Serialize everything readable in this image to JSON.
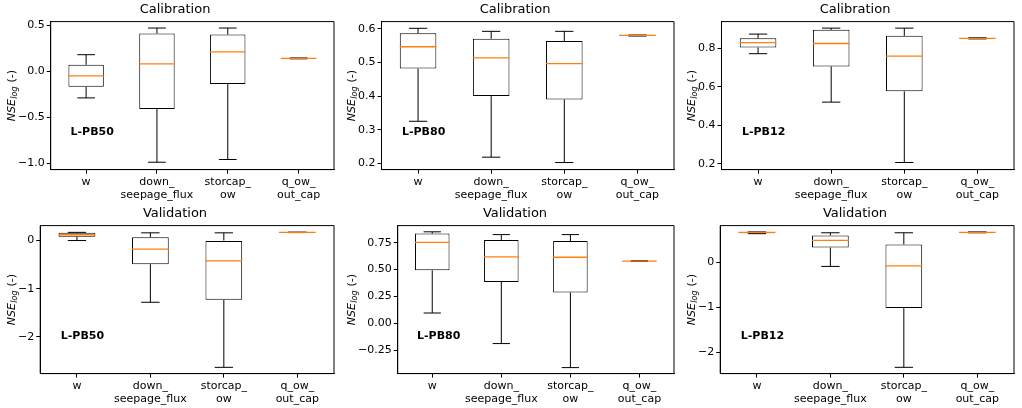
{
  "chart_data": [
    {
      "type": "box",
      "title": "Calibration",
      "ylabel": "NSE$_{log}$ (-)",
      "categories": [
        "w",
        "down_\nseepage_flux",
        "storcap_\now",
        "q_ow_\nout_cap"
      ],
      "ylim": [
        -1.07,
        0.54
      ],
      "yticks": [
        {
          "value": -1,
          "label": "−1.0"
        },
        {
          "value": -0.5,
          "label": "−0.5"
        },
        {
          "value": 0,
          "label": "0.0"
        },
        0.5
      ],
      "annotations": [
        "L-PB50"
      ],
      "boxes": [
        {
          "low": -0.29,
          "q1": -0.17,
          "median": -0.05,
          "q3": 0.07,
          "high": 0.18
        },
        {
          "low": -0.99,
          "q1": -0.41,
          "median": 0.08,
          "q3": 0.41,
          "high": 0.47
        },
        {
          "low": -0.96,
          "q1": -0.14,
          "median": 0.21,
          "q3": 0.4,
          "high": 0.47
        },
        {
          "low": 0.135,
          "q1": 0.135,
          "median": 0.14,
          "q3": 0.145,
          "high": 0.145
        }
      ]
    },
    {
      "type": "box",
      "title": "Calibration",
      "ylabel": "NSE$_{log}$ (-)",
      "categories": [
        "w",
        "down_\nseepage_flux",
        "storcap_\now",
        "q_ow_\nout_cap"
      ],
      "ylim": [
        0.181,
        0.622
      ],
      "yticks": [
        0.2,
        0.3,
        0.4,
        0.5,
        0.6
      ],
      "annotations": [
        "L-PB80"
      ],
      "boxes": [
        {
          "low": 0.325,
          "q1": 0.482,
          "median": 0.547,
          "q3": 0.587,
          "high": 0.602
        },
        {
          "low": 0.218,
          "q1": 0.4,
          "median": 0.514,
          "q3": 0.571,
          "high": 0.593
        },
        {
          "low": 0.202,
          "q1": 0.39,
          "median": 0.497,
          "q3": 0.564,
          "high": 0.593
        },
        {
          "low": 0.579,
          "q1": 0.58,
          "median": 0.581,
          "q3": 0.581,
          "high": 0.582
        }
      ]
    },
    {
      "type": "box",
      "title": "Calibration",
      "ylabel": "NSE$_{log}$ (-)",
      "categories": [
        "w",
        "down_\nseepage_flux",
        "storcap_\now",
        "q_ow_\nout_cap"
      ],
      "ylim": [
        0.17,
        0.94
      ],
      "yticks": [
        0.2,
        0.4,
        0.6,
        0.8
      ],
      "annotations": [
        "L-PB12"
      ],
      "boxes": [
        {
          "low": 0.773,
          "q1": 0.805,
          "median": 0.831,
          "q3": 0.853,
          "high": 0.875
        },
        {
          "low": 0.521,
          "q1": 0.707,
          "median": 0.826,
          "q3": 0.897,
          "high": 0.906
        },
        {
          "low": 0.207,
          "q1": 0.577,
          "median": 0.76,
          "q3": 0.866,
          "high": 0.906
        },
        {
          "low": 0.85,
          "q1": 0.852,
          "median": 0.853,
          "q3": 0.854,
          "high": 0.856
        }
      ]
    },
    {
      "type": "box",
      "title": "Validation",
      "ylabel": "NSE$_{log}$ (-)",
      "categories": [
        "w",
        "down_\nseepage_flux",
        "storcap_\now",
        "q_ow_\nout_cap"
      ],
      "ylim": [
        -2.76,
        0.31
      ],
      "yticks": [
        {
          "value": -2,
          "label": "−2"
        },
        {
          "value": -1,
          "label": "−1"
        },
        0
      ],
      "annotations": [
        "L-PB50"
      ],
      "boxes": [
        {
          "low": 0.0,
          "q1": 0.08,
          "median": 0.12,
          "q3": 0.16,
          "high": 0.17
        },
        {
          "low": -1.28,
          "q1": -0.49,
          "median": -0.18,
          "q3": 0.07,
          "high": 0.16
        },
        {
          "low": -2.63,
          "q1": -1.23,
          "median": -0.42,
          "q3": 0.0,
          "high": 0.16
        },
        {
          "low": 0.165,
          "q1": 0.168,
          "median": 0.17,
          "q3": 0.172,
          "high": 0.175
        }
      ]
    },
    {
      "type": "box",
      "title": "Validation",
      "ylabel": "NSE$_{log}$ (-)",
      "categories": [
        "w",
        "down_\nseepage_flux",
        "storcap_\now",
        "q_ow_\nout_cap"
      ],
      "ylim": [
        -0.47,
        0.91
      ],
      "yticks": [
        {
          "value": -0.25,
          "label": "−0.25"
        },
        {
          "value": 0,
          "label": "0.00"
        },
        0.25,
        {
          "value": 0.5,
          "label": "0.50"
        },
        0.75
      ],
      "annotations": [
        "L-PB80"
      ],
      "boxes": [
        {
          "low": 0.095,
          "q1": 0.493,
          "median": 0.753,
          "q3": 0.836,
          "high": 0.852
        },
        {
          "low": -0.19,
          "q1": 0.385,
          "median": 0.618,
          "q3": 0.776,
          "high": 0.826
        },
        {
          "low": -0.414,
          "q1": 0.286,
          "median": 0.615,
          "q3": 0.766,
          "high": 0.826
        },
        {
          "low": 0.575,
          "q1": 0.577,
          "median": 0.579,
          "q3": 0.58,
          "high": 0.582
        }
      ]
    },
    {
      "type": "box",
      "title": "Validation",
      "ylabel": "NSE$_{log}$ (-)",
      "categories": [
        "w",
        "down_\nseepage_flux",
        "storcap_\now",
        "q_ow_\nout_cap"
      ],
      "ylim": [
        -2.48,
        0.82
      ],
      "yticks": [
        {
          "value": -2,
          "label": "−2"
        },
        {
          "value": -1,
          "label": "−1"
        },
        0
      ],
      "annotations": [
        "L-PB12"
      ],
      "boxes": [
        {
          "low": 0.64,
          "q1": 0.65,
          "median": 0.67,
          "q3": 0.68,
          "high": 0.68
        },
        {
          "low": -0.09,
          "q1": 0.33,
          "median": 0.49,
          "q3": 0.6,
          "high": 0.66
        },
        {
          "low": -2.34,
          "q1": -1.02,
          "median": -0.08,
          "q3": 0.4,
          "high": 0.66
        },
        {
          "low": 0.66,
          "q1": 0.665,
          "median": 0.67,
          "q3": 0.675,
          "high": 0.68
        }
      ]
    }
  ]
}
